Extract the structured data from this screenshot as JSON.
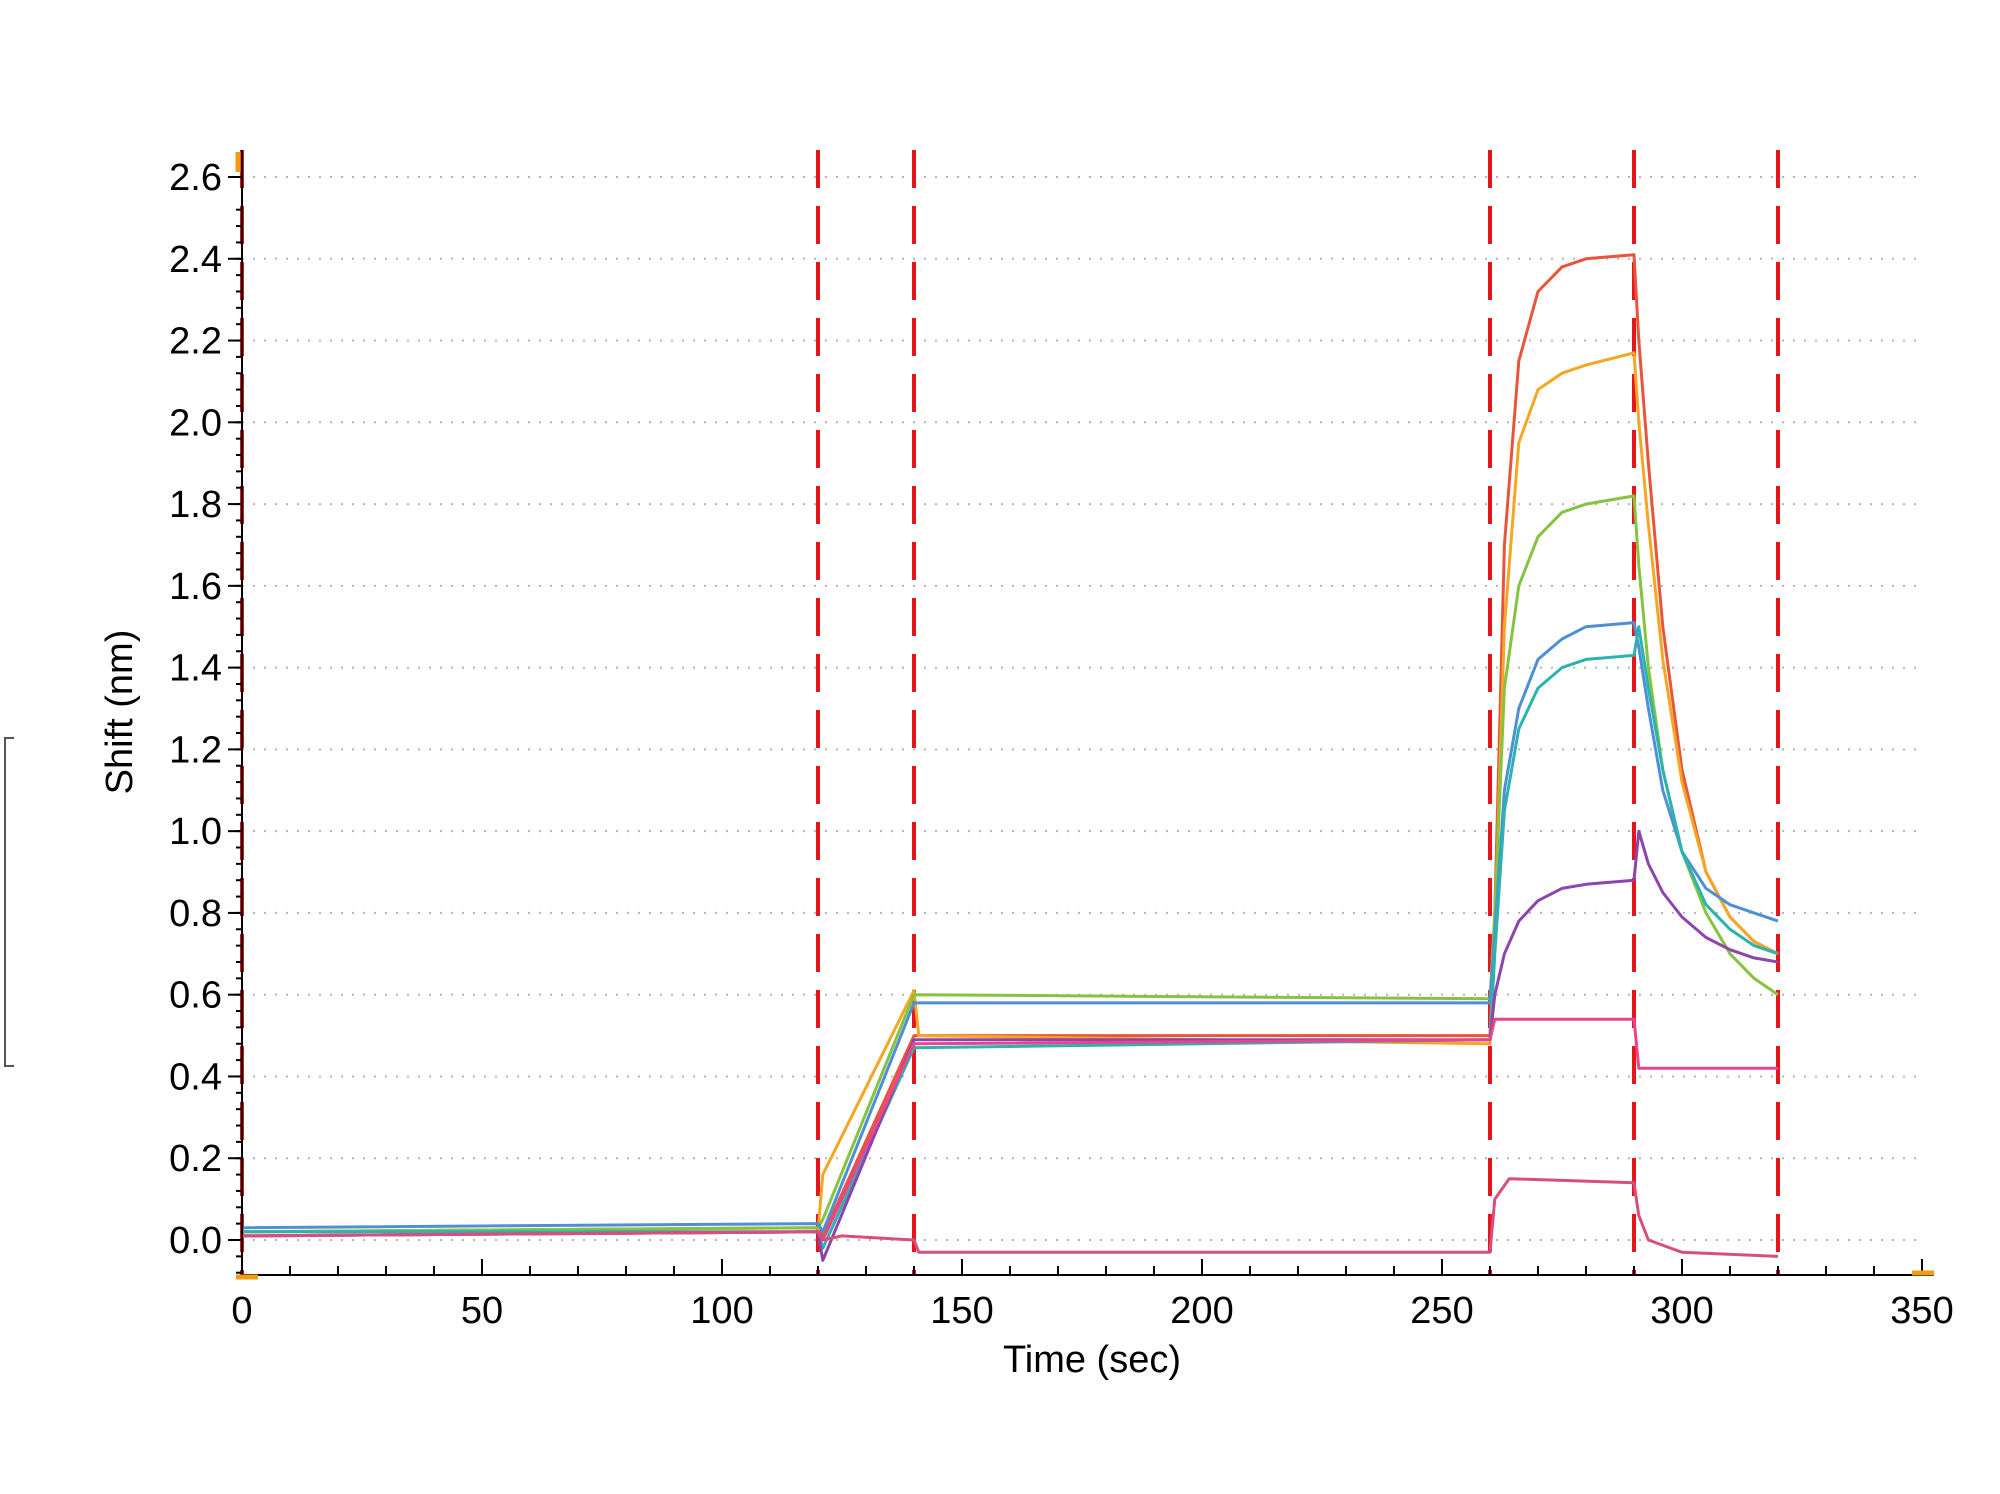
{
  "chart_data": {
    "type": "line",
    "title": "",
    "xlabel": "Time (sec)",
    "ylabel": "Shift (nm)",
    "xlim": [
      0,
      350
    ],
    "ylim": [
      -0.08,
      2.66
    ],
    "xticks": [
      0,
      50,
      100,
      150,
      200,
      250,
      300,
      350
    ],
    "yticks": [
      0.0,
      0.2,
      0.4,
      0.6,
      0.8,
      1.0,
      1.2,
      1.4,
      1.6,
      1.8,
      2.0,
      2.2,
      2.4,
      2.6
    ],
    "xtick_labels": [
      "0",
      "50",
      "100",
      "150",
      "200",
      "250",
      "300",
      "350"
    ],
    "ytick_labels": [
      "0.0",
      "0.2",
      "0.4",
      "0.6",
      "0.8",
      "1.0",
      "1.2",
      "1.4",
      "1.6",
      "1.8",
      "2.0",
      "2.2",
      "2.4",
      "2.6"
    ],
    "grid": "horizontal dotted",
    "legend": "none",
    "step_boundaries": [
      0,
      120,
      140,
      260,
      290,
      320
    ],
    "step_boundary_color": "#e8141b",
    "series": [
      {
        "color": "#e8553a",
        "points": [
          [
            0,
            0.02
          ],
          [
            120,
            0.03
          ],
          [
            121,
            0.01
          ],
          [
            140,
            0.5
          ],
          [
            260,
            0.5
          ],
          [
            261,
            0.8
          ],
          [
            263,
            1.7
          ],
          [
            266,
            2.15
          ],
          [
            270,
            2.32
          ],
          [
            275,
            2.38
          ],
          [
            280,
            2.4
          ],
          [
            290,
            2.41
          ],
          [
            291,
            2.2
          ],
          [
            293,
            1.9
          ],
          [
            296,
            1.5
          ],
          [
            300,
            1.15
          ],
          [
            305,
            0.9
          ],
          [
            310,
            0.79
          ],
          [
            315,
            0.73
          ],
          [
            320,
            0.7
          ]
        ]
      },
      {
        "color": "#f6a623",
        "points": [
          [
            0,
            0.01
          ],
          [
            120,
            0.02
          ],
          [
            121,
            0.16
          ],
          [
            140,
            0.61
          ],
          [
            141,
            0.5
          ],
          [
            260,
            0.48
          ],
          [
            261,
            0.75
          ],
          [
            263,
            1.5
          ],
          [
            266,
            1.95
          ],
          [
            270,
            2.08
          ],
          [
            275,
            2.12
          ],
          [
            280,
            2.14
          ],
          [
            290,
            2.17
          ],
          [
            291,
            2.0
          ],
          [
            293,
            1.75
          ],
          [
            296,
            1.42
          ],
          [
            300,
            1.12
          ],
          [
            305,
            0.9
          ],
          [
            310,
            0.79
          ],
          [
            315,
            0.73
          ],
          [
            320,
            0.7
          ]
        ]
      },
      {
        "color": "#84c441",
        "points": [
          [
            0,
            0.02
          ],
          [
            120,
            0.03
          ],
          [
            121,
            0.05
          ],
          [
            140,
            0.6
          ],
          [
            260,
            0.59
          ],
          [
            261,
            0.8
          ],
          [
            263,
            1.35
          ],
          [
            266,
            1.6
          ],
          [
            270,
            1.72
          ],
          [
            275,
            1.78
          ],
          [
            280,
            1.8
          ],
          [
            290,
            1.82
          ],
          [
            291,
            1.65
          ],
          [
            293,
            1.4
          ],
          [
            296,
            1.15
          ],
          [
            300,
            0.95
          ],
          [
            305,
            0.8
          ],
          [
            310,
            0.7
          ],
          [
            315,
            0.64
          ],
          [
            320,
            0.6
          ]
        ]
      },
      {
        "color": "#4f8fd6",
        "points": [
          [
            0,
            0.03
          ],
          [
            120,
            0.04
          ],
          [
            121,
            0.02
          ],
          [
            140,
            0.58
          ],
          [
            260,
            0.58
          ],
          [
            261,
            0.75
          ],
          [
            263,
            1.1
          ],
          [
            266,
            1.3
          ],
          [
            270,
            1.42
          ],
          [
            275,
            1.47
          ],
          [
            280,
            1.5
          ],
          [
            290,
            1.51
          ],
          [
            291,
            1.45
          ],
          [
            293,
            1.3
          ],
          [
            296,
            1.1
          ],
          [
            300,
            0.95
          ],
          [
            305,
            0.86
          ],
          [
            310,
            0.82
          ],
          [
            315,
            0.8
          ],
          [
            320,
            0.78
          ]
        ]
      },
      {
        "color": "#2cb3b0",
        "points": [
          [
            0,
            0.02
          ],
          [
            120,
            0.02
          ],
          [
            121,
            -0.02
          ],
          [
            140,
            0.47
          ],
          [
            260,
            0.49
          ],
          [
            261,
            0.7
          ],
          [
            263,
            1.05
          ],
          [
            266,
            1.25
          ],
          [
            270,
            1.35
          ],
          [
            275,
            1.4
          ],
          [
            280,
            1.42
          ],
          [
            290,
            1.43
          ],
          [
            291,
            1.5
          ],
          [
            293,
            1.35
          ],
          [
            296,
            1.15
          ],
          [
            300,
            0.95
          ],
          [
            305,
            0.82
          ],
          [
            310,
            0.76
          ],
          [
            315,
            0.72
          ],
          [
            320,
            0.7
          ]
        ]
      },
      {
        "color": "#8e44ad",
        "points": [
          [
            0,
            0.01
          ],
          [
            120,
            0.02
          ],
          [
            121,
            -0.05
          ],
          [
            140,
            0.49
          ],
          [
            260,
            0.49
          ],
          [
            261,
            0.6
          ],
          [
            263,
            0.7
          ],
          [
            266,
            0.78
          ],
          [
            270,
            0.83
          ],
          [
            275,
            0.86
          ],
          [
            280,
            0.87
          ],
          [
            290,
            0.88
          ],
          [
            291,
            1.0
          ],
          [
            293,
            0.92
          ],
          [
            296,
            0.85
          ],
          [
            300,
            0.79
          ],
          [
            305,
            0.74
          ],
          [
            310,
            0.71
          ],
          [
            315,
            0.69
          ],
          [
            320,
            0.68
          ]
        ]
      },
      {
        "color": "#e8458a",
        "points": [
          [
            0,
            0.01
          ],
          [
            120,
            0.02
          ],
          [
            121,
            0.0
          ],
          [
            140,
            0.48
          ],
          [
            260,
            0.49
          ],
          [
            261,
            0.54
          ],
          [
            290,
            0.54
          ],
          [
            291,
            0.42
          ],
          [
            320,
            0.42
          ]
        ]
      },
      {
        "color": "#d94f7c",
        "points": [
          [
            0,
            0.01
          ],
          [
            120,
            0.02
          ],
          [
            121,
            0.0
          ],
          [
            125,
            0.01
          ],
          [
            140,
            0.0
          ],
          [
            141,
            -0.03
          ],
          [
            260,
            -0.03
          ],
          [
            261,
            0.1
          ],
          [
            264,
            0.15
          ],
          [
            290,
            0.14
          ],
          [
            291,
            0.06
          ],
          [
            293,
            0.0
          ],
          [
            300,
            -0.03
          ],
          [
            320,
            -0.04
          ]
        ]
      }
    ]
  }
}
